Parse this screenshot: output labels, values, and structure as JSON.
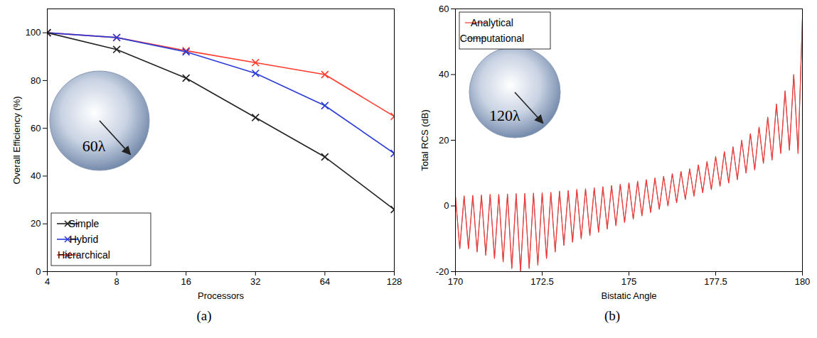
{
  "chart_data": [
    {
      "type": "line",
      "title": "(a)",
      "x_label": "Processors",
      "y_label": "Overall Efficiency (%)",
      "log": "x",
      "x": [
        4,
        8,
        16,
        32,
        64,
        128
      ],
      "xlim": [
        4,
        128
      ],
      "xticks": [
        4,
        8,
        16,
        32,
        64,
        128
      ],
      "ylim": [
        0,
        110
      ],
      "yticks": [
        0,
        20,
        40,
        60,
        80,
        100
      ],
      "grid": false,
      "legend": "lower left",
      "annotations": [
        "60λ"
      ],
      "series": [
        {
          "name": "Simple",
          "color": "#222222",
          "marker": "x",
          "values": [
            100,
            93,
            81,
            64.5,
            48,
            26
          ]
        },
        {
          "name": "Hybrid",
          "color": "#2b3bd6",
          "marker": "x",
          "values": [
            100,
            98,
            92,
            83,
            69.5,
            49.5
          ]
        },
        {
          "name": "Hierarchical",
          "color": "#ff3b2f",
          "marker": "x",
          "values": [
            100,
            98,
            92.5,
            87.5,
            82.5,
            65
          ]
        }
      ]
    },
    {
      "type": "line",
      "title": "(b)",
      "x_label": "Bistatic Angle",
      "y_label": "Total RCS (dB)",
      "x": [
        170,
        170.125,
        170.25,
        170.375,
        170.5,
        170.625,
        170.75,
        170.875,
        171,
        171.125,
        171.25,
        171.375,
        171.5,
        171.625,
        171.75,
        171.875,
        172,
        172.125,
        172.25,
        172.375,
        172.5,
        172.625,
        172.75,
        172.875,
        173,
        173.125,
        173.25,
        173.375,
        173.5,
        173.625,
        173.75,
        173.875,
        174,
        174.125,
        174.25,
        174.375,
        174.5,
        174.625,
        174.75,
        174.875,
        175,
        175.125,
        175.25,
        175.375,
        175.5,
        175.625,
        175.75,
        175.875,
        176,
        176.125,
        176.25,
        176.375,
        176.5,
        176.625,
        176.75,
        176.875,
        177,
        177.125,
        177.25,
        177.375,
        177.5,
        177.625,
        177.75,
        177.875,
        178,
        178.125,
        178.25,
        178.375,
        178.5,
        178.625,
        178.75,
        178.875,
        179,
        179.125,
        179.25,
        179.375,
        179.5,
        179.625,
        179.75,
        179.875,
        180
      ],
      "xlim": [
        170,
        180
      ],
      "xticks": [
        170,
        172.5,
        175,
        177.5,
        180
      ],
      "ylim": [
        -20,
        60
      ],
      "yticks": [
        -20,
        0,
        20,
        40,
        60
      ],
      "grid": false,
      "legend": "upper left",
      "annotations": [
        "120λ"
      ],
      "series": [
        {
          "name": "Analytical",
          "color": "#ff3333",
          "values": [
            3,
            -13,
            3,
            -13,
            3.2,
            -14,
            3.3,
            -15,
            3.5,
            -16,
            3.5,
            -17,
            3.6,
            -19,
            3.7,
            -20,
            3.8,
            -19,
            3.9,
            -18,
            4,
            -16,
            4.1,
            -14,
            4.5,
            -12,
            4.7,
            -11,
            5,
            -10,
            5.2,
            -9,
            5.5,
            -8,
            5.8,
            -7,
            6.2,
            -6,
            6.6,
            -5,
            7,
            -4,
            7.5,
            -3,
            8,
            -2,
            8.5,
            -1,
            9,
            0,
            9.8,
            1,
            10.5,
            2,
            11.3,
            3,
            12.5,
            4,
            13.5,
            5,
            15,
            6,
            16.5,
            7,
            18,
            8,
            20,
            10,
            22,
            11,
            24,
            13,
            27,
            14,
            31,
            16,
            35,
            17,
            40,
            16,
            57
          ]
        },
        {
          "name": "Computational",
          "color": "#777777",
          "values": [
            3,
            -13,
            3,
            -13,
            3.2,
            -14,
            3.3,
            -15,
            3.5,
            -16,
            3.5,
            -17,
            3.6,
            -19,
            3.7,
            -20,
            3.8,
            -19,
            3.9,
            -18,
            4,
            -16,
            4.1,
            -14,
            4.5,
            -12,
            4.7,
            -11,
            5,
            -10,
            5.2,
            -9,
            5.5,
            -8,
            5.8,
            -7,
            6.2,
            -6,
            6.6,
            -5,
            7,
            -4,
            7.5,
            -3,
            8,
            -2,
            8.5,
            -1,
            9,
            0,
            9.8,
            1,
            10.5,
            2,
            11.3,
            3,
            12.5,
            4,
            13.5,
            5,
            15,
            6,
            16.5,
            7,
            18,
            8,
            20,
            10,
            22,
            11,
            24,
            13,
            27,
            14,
            31,
            16,
            35,
            17,
            40,
            16,
            57
          ]
        }
      ]
    }
  ]
}
